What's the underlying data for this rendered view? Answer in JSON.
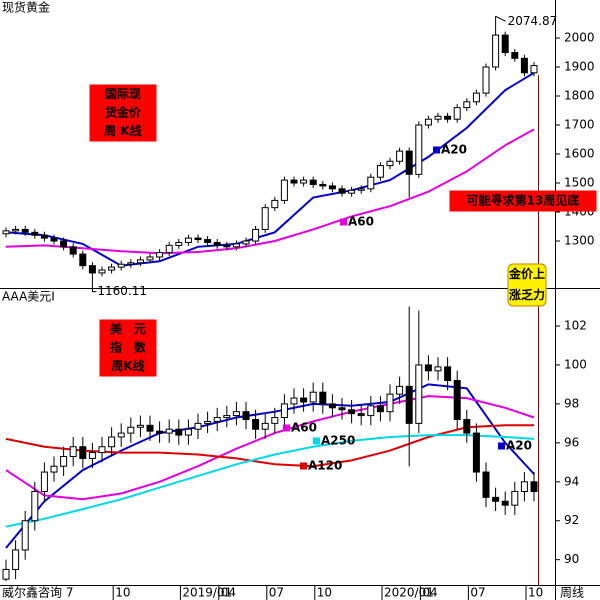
{
  "chart_data": [
    {
      "type": "candlestick",
      "title": "现货黄金",
      "label_extremes": true,
      "ylim": [
        1138,
        2131
      ],
      "yticks": [
        1300,
        1400,
        1500,
        1600,
        1700,
        1800,
        1900,
        2000
      ],
      "open": [
        1325,
        1335,
        1340,
        1330,
        1320,
        1310,
        1300,
        1280,
        1255,
        1215,
        1190,
        1200,
        1210,
        1220,
        1225,
        1235,
        1245,
        1260,
        1285,
        1295,
        1310,
        1305,
        1295,
        1285,
        1280,
        1290,
        1300,
        1340,
        1415,
        1440,
        1510,
        1500,
        1510,
        1495,
        1490,
        1480,
        1465,
        1475,
        1480,
        1520,
        1560,
        1575,
        1610,
        1530,
        1700,
        1720,
        1730,
        1720,
        1760,
        1780,
        1810,
        1900,
        2010,
        1950,
        1930,
        1880
      ],
      "high": [
        1347,
        1352,
        1352,
        1342,
        1332,
        1322,
        1312,
        1292,
        1267,
        1227,
        1212,
        1222,
        1232,
        1237,
        1247,
        1257,
        1272,
        1297,
        1307,
        1322,
        1322,
        1317,
        1307,
        1297,
        1302,
        1312,
        1352,
        1427,
        1452,
        1522,
        1522,
        1522,
        1522,
        1507,
        1502,
        1492,
        1487,
        1492,
        1532,
        1572,
        1587,
        1622,
        1622,
        1712,
        1732,
        1742,
        1742,
        1772,
        1792,
        1822,
        1912,
        2074.87,
        2022,
        1962,
        1942,
        1917
      ],
      "low": [
        1313,
        1323,
        1318,
        1308,
        1298,
        1288,
        1268,
        1243,
        1203,
        1160.11,
        1178,
        1188,
        1198,
        1208,
        1213,
        1223,
        1233,
        1248,
        1273,
        1283,
        1293,
        1283,
        1273,
        1268,
        1268,
        1278,
        1288,
        1328,
        1403,
        1428,
        1488,
        1488,
        1483,
        1478,
        1468,
        1453,
        1453,
        1463,
        1468,
        1508,
        1548,
        1563,
        1450,
        1518,
        1688,
        1708,
        1708,
        1708,
        1748,
        1768,
        1798,
        1888,
        1938,
        1918,
        1868,
        1868
      ],
      "close": [
        1335,
        1340,
        1330,
        1320,
        1310,
        1300,
        1280,
        1255,
        1215,
        1190,
        1200,
        1210,
        1220,
        1225,
        1235,
        1245,
        1260,
        1285,
        1295,
        1310,
        1305,
        1295,
        1285,
        1280,
        1290,
        1300,
        1340,
        1415,
        1440,
        1510,
        1500,
        1510,
        1495,
        1490,
        1480,
        1465,
        1475,
        1480,
        1520,
        1560,
        1575,
        1610,
        1530,
        1700,
        1720,
        1730,
        1720,
        1760,
        1780,
        1810,
        1900,
        2010,
        1950,
        1930,
        1880,
        1905
      ],
      "series": [
        {
          "name": "A20",
          "color": "#0000cc",
          "x": [
            0,
            4,
            8,
            12,
            16,
            20,
            24,
            28,
            32,
            36,
            40,
            44,
            48,
            52,
            55
          ],
          "values": [
            1330,
            1320,
            1290,
            1215,
            1230,
            1280,
            1290,
            1330,
            1450,
            1475,
            1510,
            1590,
            1690,
            1820,
            1880
          ]
        },
        {
          "name": "A60",
          "color": "#e000e0",
          "x": [
            0,
            4,
            8,
            12,
            16,
            20,
            24,
            28,
            32,
            36,
            40,
            44,
            48,
            52,
            55
          ],
          "values": [
            1280,
            1285,
            1275,
            1265,
            1258,
            1262,
            1275,
            1300,
            1340,
            1385,
            1420,
            1470,
            1540,
            1630,
            1685
          ]
        }
      ],
      "annotations": [
        [
          "国际现",
          "货金价",
          "周 K线"
        ],
        [
          "可能寻求第13周见底"
        ],
        [
          "金价上",
          "涨乏力"
        ]
      ]
    },
    {
      "type": "candlestick",
      "title": "AAA美元I",
      "source": "威尔鑫咨询 7",
      "period": "周线",
      "ylim": [
        88.7,
        103.9
      ],
      "yticks": [
        90,
        92,
        94,
        96,
        98,
        100,
        102
      ],
      "categories": [
        null,
        null,
        null,
        null,
        null,
        null,
        null,
        null,
        null,
        null,
        null,
        null,
        "10",
        null,
        null,
        null,
        null,
        null,
        null,
        "2019/01",
        null,
        null,
        null,
        "04",
        null,
        null,
        null,
        null,
        "07",
        null,
        null,
        null,
        null,
        "10",
        null,
        null,
        null,
        null,
        null,
        null,
        "2020/01",
        null,
        null,
        null,
        "04",
        null,
        null,
        null,
        null,
        "07",
        null,
        null,
        null,
        null,
        null,
        "10"
      ],
      "open": [
        89.0,
        89.5,
        90.5,
        92,
        93.5,
        94.5,
        94.8,
        95.3,
        95.8,
        95.2,
        95.5,
        95.8,
        96.3,
        96.5,
        96.8,
        96.9,
        96.6,
        96.5,
        96.7,
        96.4,
        96.7,
        97.0,
        97.1,
        97.3,
        97.4,
        97.6,
        97.2,
        96.7,
        97.0,
        97.3,
        98.0,
        98.3,
        98.1,
        98.6,
        98.0,
        97.8,
        97.7,
        97.5,
        97.4,
        97.9,
        97.6,
        98.5,
        98.9,
        97.0,
        100.0,
        99.7,
        99.9,
        99.2,
        97.2,
        96.5,
        94.5,
        93.2,
        93.0,
        92.8,
        93.5,
        94.0
      ],
      "high": [
        90.0,
        91.0,
        92.5,
        94.0,
        95.0,
        95.3,
        95.8,
        96.3,
        96.3,
        96.0,
        96.3,
        96.8,
        97.0,
        97.3,
        97.4,
        97.4,
        97.1,
        97.2,
        97.2,
        97.2,
        97.5,
        97.6,
        97.8,
        97.9,
        98.1,
        98.1,
        97.7,
        97.5,
        97.8,
        98.5,
        98.8,
        98.8,
        99.1,
        99.1,
        98.5,
        98.3,
        98.2,
        98.0,
        98.4,
        98.4,
        99.0,
        99.4,
        103.0,
        102.8,
        100.5,
        100.4,
        100.4,
        99.7,
        97.7,
        97.0,
        95.0,
        93.7,
        93.5,
        94.0,
        94.5,
        94.5
      ],
      "low": [
        88.9,
        89.0,
        90.0,
        91.5,
        93.0,
        94.0,
        94.3,
        94.8,
        94.7,
        94.7,
        95.0,
        95.3,
        95.8,
        96.0,
        96.3,
        96.1,
        96.0,
        96.0,
        95.9,
        95.9,
        96.2,
        96.5,
        96.6,
        96.8,
        96.9,
        96.7,
        96.2,
        96.2,
        96.5,
        96.8,
        97.5,
        97.6,
        97.6,
        97.5,
        97.3,
        97.2,
        97.0,
        96.9,
        96.9,
        97.1,
        97.1,
        98.0,
        94.8,
        96.5,
        99.2,
        99.2,
        98.7,
        96.7,
        96.0,
        94.0,
        92.7,
        92.5,
        92.3,
        92.3,
        93.0,
        93.0
      ],
      "close": [
        89.5,
        90.5,
        92,
        93.5,
        94.5,
        94.8,
        95.3,
        95.8,
        95.2,
        95.5,
        95.8,
        96.3,
        96.5,
        96.8,
        96.9,
        96.6,
        96.5,
        96.7,
        96.4,
        96.7,
        97.0,
        97.1,
        97.3,
        97.4,
        97.6,
        97.2,
        96.7,
        97.0,
        97.3,
        98.0,
        98.3,
        98.1,
        98.6,
        98.0,
        97.8,
        97.7,
        97.5,
        97.4,
        97.9,
        97.6,
        98.5,
        98.9,
        97.0,
        100.0,
        99.7,
        99.9,
        99.2,
        97.2,
        96.5,
        94.5,
        93.2,
        93.0,
        92.8,
        93.5,
        94.0,
        93.5
      ],
      "series": [
        {
          "name": "A20",
          "color": "#0000cc",
          "x": [
            0,
            4,
            8,
            12,
            16,
            20,
            24,
            28,
            32,
            36,
            40,
            44,
            48,
            52,
            55
          ],
          "values": [
            90.6,
            93.0,
            94.6,
            95.6,
            96.5,
            96.8,
            97.3,
            97.6,
            98.0,
            97.9,
            98.1,
            99.0,
            98.8,
            96.0,
            94.4
          ]
        },
        {
          "name": "A60",
          "color": "#e000e0",
          "x": [
            0,
            4,
            8,
            12,
            16,
            20,
            24,
            28,
            32,
            36,
            40,
            44,
            48,
            52,
            55
          ],
          "values": [
            94.6,
            93.3,
            93.1,
            93.4,
            94.0,
            94.8,
            95.7,
            96.5,
            97.1,
            97.6,
            98.0,
            98.4,
            98.3,
            97.8,
            97.3
          ]
        },
        {
          "name": "A120",
          "color": "#dd0000",
          "x": [
            0,
            4,
            8,
            12,
            16,
            20,
            24,
            28,
            32,
            36,
            40,
            44,
            48,
            52,
            55
          ],
          "values": [
            96.2,
            95.8,
            95.6,
            95.5,
            95.5,
            95.4,
            95.2,
            94.9,
            94.8,
            95.1,
            95.6,
            96.3,
            96.8,
            96.9,
            96.9
          ]
        },
        {
          "name": "A250",
          "color": "#00d8e8",
          "x": [
            0,
            4,
            8,
            12,
            16,
            20,
            24,
            28,
            32,
            36,
            40,
            44,
            48,
            52,
            55
          ],
          "values": [
            91.7,
            92.1,
            92.6,
            93.1,
            93.7,
            94.3,
            94.9,
            95.4,
            95.8,
            96.1,
            96.3,
            96.4,
            96.4,
            96.3,
            96.2
          ]
        }
      ],
      "annotations": [
        [
          "美　元",
          "指　数",
          "周K线"
        ]
      ]
    }
  ]
}
